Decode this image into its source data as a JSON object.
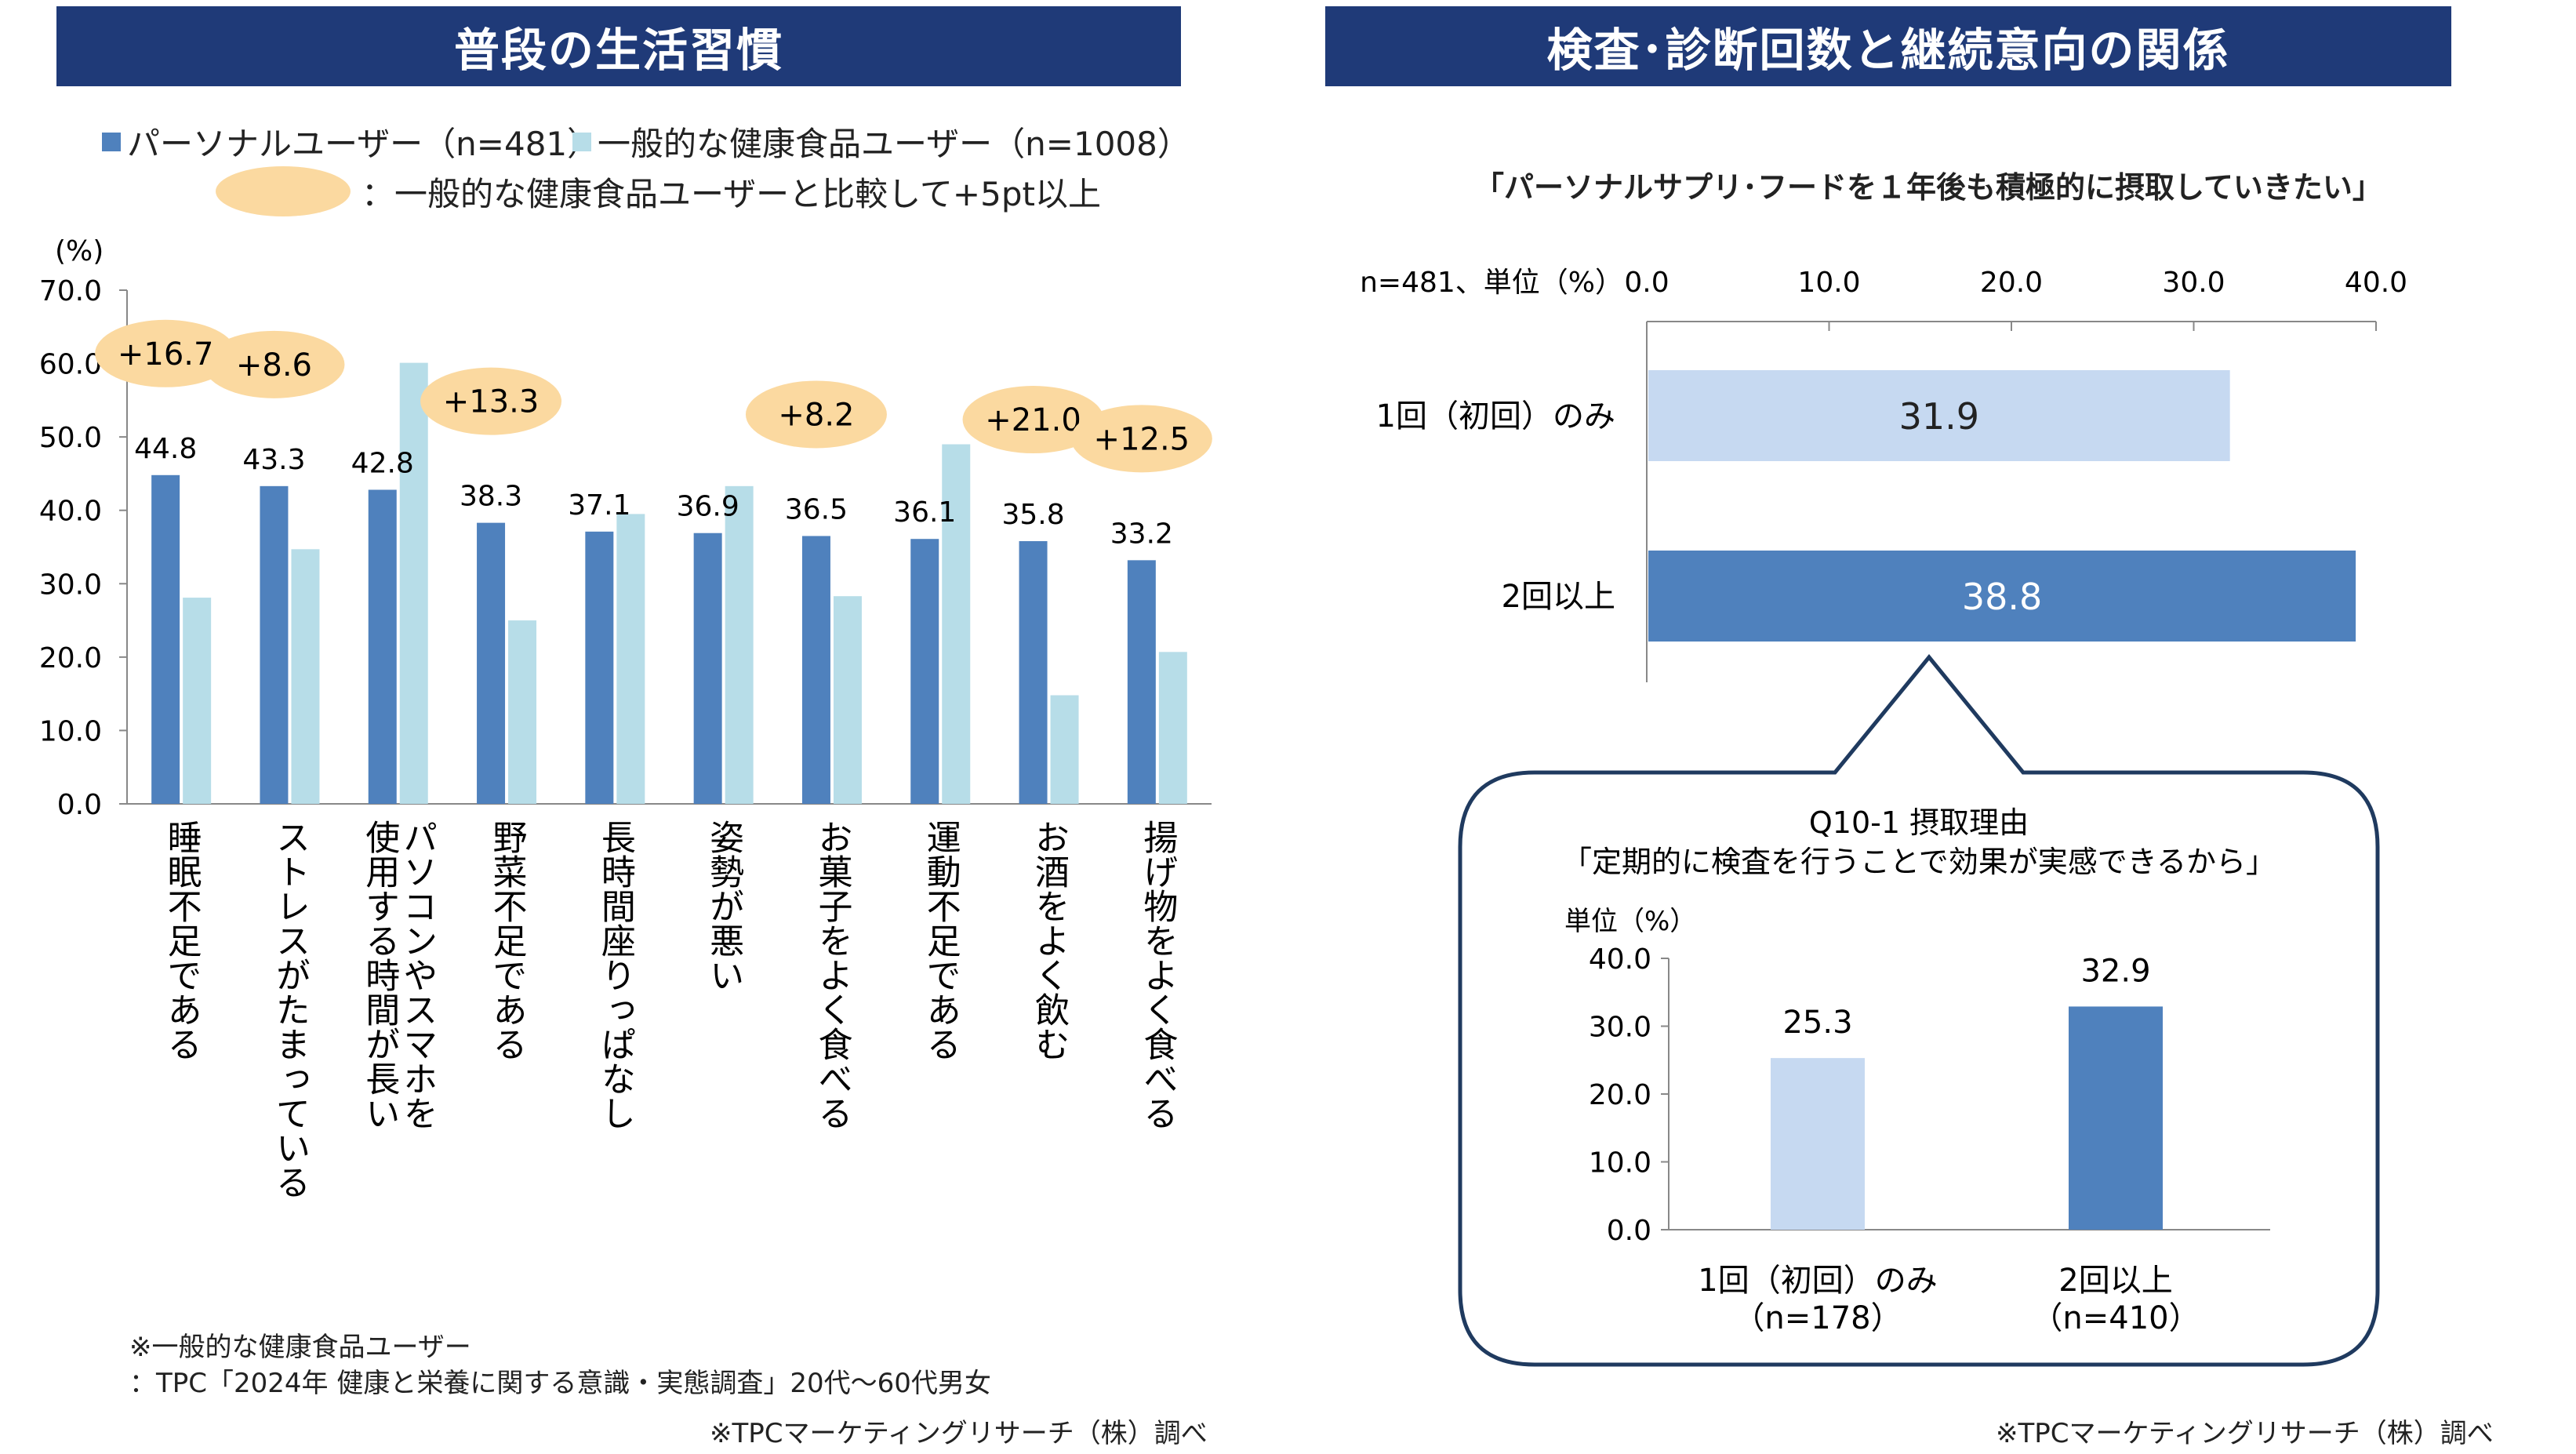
{
  "left": {
    "title": "普段の生活習慣",
    "legend": {
      "series1": "パーソナルユーザー（n=481）",
      "series2": "一般的な健康食品ユーザー（n=1008）",
      "highlight": "：一般的な健康食品ユーザーと比較して+5pt以上"
    },
    "unit": "(%)",
    "note1": "※一般的な健康食品ユーザー",
    "note2": "：TPC「2024年 健康と栄養に関する意識・実態調査」20代～60代男女",
    "credit": "※TPCマーケティングリサーチ（株）調べ"
  },
  "right": {
    "title": "検査･診断回数と継続意向の関係",
    "subtitle": "「パーソナルサプリ･フードを１年後も積極的に摂取していきたい」",
    "axis_caption": "n=481、単位（%）",
    "callout_title": "Q10-1 摂取理由",
    "callout_subtitle": "「定期的に検査を行うことで効果が実感できるから」",
    "callout_unit": "単位（%）",
    "credit": "※TPCマーケティングリサーチ（株）調べ"
  },
  "colors": {
    "title_bg": "#1f3a78",
    "series1": "#4f81bd",
    "series2": "#b7dde8",
    "light_bar": "#c6d9f1",
    "highlight": "#fbd9a0"
  },
  "chart_data": [
    {
      "type": "bar",
      "categories": [
        "睡眠不足である",
        "ストレスがたまっている",
        "パソコンやスマホを使用する時間が長い",
        "野菜不足である",
        "長時間座りっぱなし",
        "姿勢が悪い",
        "お菓子をよく食べる",
        "運動不足である",
        "お酒をよく飲む",
        "揚げ物をよく食べる"
      ],
      "category_lines": [
        [
          "睡眠不足である"
        ],
        [
          "ストレスがたまっている"
        ],
        [
          "パソコンやスマホを",
          "使用する時間が長い"
        ],
        [
          "野菜不足である"
        ],
        [
          "長時間座りっぱなし"
        ],
        [
          "姿勢が悪い"
        ],
        [
          "お菓子をよく食べる"
        ],
        [
          "運動不足である"
        ],
        [
          "お酒をよく飲む"
        ],
        [
          "揚げ物をよく食べる"
        ]
      ],
      "series": [
        {
          "name": "パーソナルユーザー（n=481）",
          "values": [
            44.8,
            43.3,
            42.8,
            38.3,
            37.1,
            36.9,
            36.5,
            36.1,
            35.8,
            33.2
          ],
          "labels": [
            "44.8",
            "43.3",
            "42.8",
            "38.3",
            "37.1",
            "36.9",
            "36.5",
            "36.1",
            "35.8",
            "33.2"
          ]
        },
        {
          "name": "一般的な健康食品ユーザー（n=1008）",
          "values": [
            28.1,
            34.7,
            60.1,
            25.0,
            39.5,
            43.3,
            28.3,
            49.0,
            14.8,
            20.7
          ]
        }
      ],
      "differences": [
        "+16.7",
        "+8.6",
        "",
        "+13.3",
        "",
        "",
        "+8.2",
        "",
        "+21.0",
        "+12.5"
      ],
      "ylim": [
        0,
        70
      ],
      "yticks": [
        "0.0",
        "10.0",
        "20.0",
        "30.0",
        "40.0",
        "50.0",
        "60.0",
        "70.0"
      ]
    },
    {
      "type": "bar",
      "orientation": "horizontal",
      "categories": [
        "1回（初回）のみ",
        "2回以上"
      ],
      "values": [
        31.9,
        38.8
      ],
      "labels": [
        "31.9",
        "38.8"
      ],
      "xlim": [
        0,
        40
      ],
      "xticks": [
        "0.0",
        "10.0",
        "20.0",
        "30.0",
        "40.0"
      ]
    },
    {
      "type": "bar",
      "categories": [
        "1回（初回）のみ",
        "2回以上"
      ],
      "category_sub": [
        "（n=178）",
        "（n=410）"
      ],
      "values": [
        25.3,
        32.9
      ],
      "labels": [
        "25.3",
        "32.9"
      ],
      "ylim": [
        0,
        40
      ],
      "yticks": [
        "0.0",
        "10.0",
        "20.0",
        "30.0",
        "40.0"
      ]
    }
  ]
}
